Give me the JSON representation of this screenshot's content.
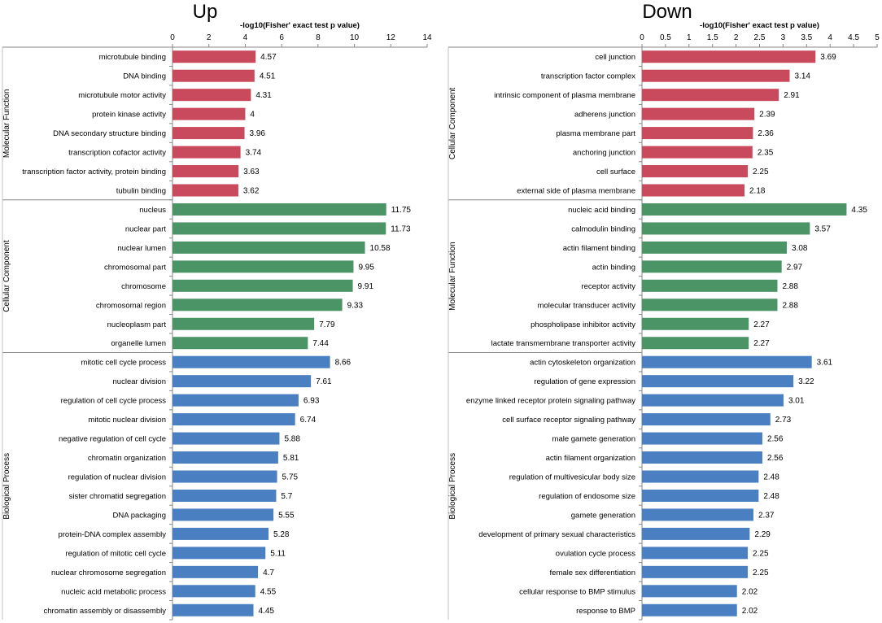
{
  "chart_data": [
    {
      "type": "bar",
      "orientation": "horizontal",
      "title": "Up",
      "xlabel": "-log10(Fisher' exact test p value)",
      "xlim": [
        0,
        14
      ],
      "xticks": [
        "0",
        "2",
        "4",
        "6",
        "8",
        "10",
        "12",
        "14"
      ],
      "groups": [
        {
          "name": "Molecular Function",
          "color": "#c94a5c",
          "categories": [
            "microtubule binding",
            "DNA binding",
            "microtubule motor activity",
            "protein kinase activity",
            "DNA secondary structure binding",
            "transcription cofactor activity",
            "transcription factor activity, protein binding",
            "tubulin binding"
          ],
          "values": [
            4.57,
            4.51,
            4.31,
            4,
            3.96,
            3.74,
            3.63,
            3.62
          ],
          "labels": [
            "4.57",
            "4.51",
            "4.31",
            "4",
            "3.96",
            "3.74",
            "3.63",
            "3.62"
          ]
        },
        {
          "name": "Cellular Component",
          "color": "#4a9466",
          "categories": [
            "nucleus",
            "nuclear part",
            "nuclear lumen",
            "chromosomal part",
            "chromosome",
            "chromosomal region",
            "nucleoplasm part",
            "organelle lumen"
          ],
          "values": [
            11.75,
            11.73,
            10.58,
            9.95,
            9.91,
            9.33,
            7.79,
            7.44
          ],
          "labels": [
            "11.75",
            "11.73",
            "10.58",
            "9.95",
            "9.91",
            "9.33",
            "7.79",
            "7.44"
          ]
        },
        {
          "name": "Biological Process",
          "color": "#4a80c2",
          "categories": [
            "mitotic cell cycle process",
            "nuclear division",
            "regulation of cell cycle process",
            "mitotic nuclear division",
            "negative regulation of cell cycle",
            "chromatin organization",
            "regulation of nuclear division",
            "sister chromatid segregation",
            "DNA packaging",
            "protein-DNA complex assembly",
            "regulation of mitotic cell cycle",
            "nuclear chromosome segregation",
            "nucleic acid metabolic process",
            "chromatin assembly or disassembly"
          ],
          "values": [
            8.66,
            7.61,
            6.93,
            6.74,
            5.88,
            5.81,
            5.75,
            5.7,
            5.55,
            5.28,
            5.11,
            4.7,
            4.55,
            4.45
          ],
          "labels": [
            "8.66",
            "7.61",
            "6.93",
            "6.74",
            "5.88",
            "5.81",
            "5.75",
            "5.7",
            "5.55",
            "5.28",
            "5.11",
            "4.7",
            "4.55",
            "4.45"
          ]
        }
      ]
    },
    {
      "type": "bar",
      "orientation": "horizontal",
      "title": "Down",
      "xlabel": "-log10(Fisher' exact test p value)",
      "xlim": [
        0,
        5
      ],
      "xticks": [
        "0",
        "0.5",
        "1",
        "1.5",
        "2",
        "2.5",
        "3",
        "3.5",
        "4",
        "4.5",
        "5"
      ],
      "groups": [
        {
          "name": "Cellular Component",
          "color": "#c94a5c",
          "categories": [
            "cell junction",
            "transcription factor complex",
            "intrinsic component of plasma membrane",
            "adherens junction",
            "plasma membrane part",
            "anchoring junction",
            "cell surface",
            "external side of plasma membrane"
          ],
          "values": [
            3.69,
            3.14,
            2.91,
            2.39,
            2.36,
            2.35,
            2.25,
            2.18
          ],
          "labels": [
            "3.69",
            "3.14",
            "2.91",
            "2.39",
            "2.36",
            "2.35",
            "2.25",
            "2.18"
          ]
        },
        {
          "name": "Molecular Function",
          "color": "#4a9466",
          "categories": [
            "nucleic acid binding",
            "calmodulin binding",
            "actin filament binding",
            "actin binding",
            "receptor activity",
            "molecular transducer activity",
            "phospholipase inhibitor activity",
            "lactate transmembrane transporter activity"
          ],
          "values": [
            4.35,
            3.57,
            3.08,
            2.97,
            2.88,
            2.88,
            2.27,
            2.27
          ],
          "labels": [
            "4.35",
            "3.57",
            "3.08",
            "2.97",
            "2.88",
            "2.88",
            "2.27",
            "2.27"
          ]
        },
        {
          "name": "Biological Process",
          "color": "#4a80c2",
          "categories": [
            "actin cytoskeleton organization",
            "regulation of gene expression",
            "enzyme linked receptor protein signaling pathway",
            "cell surface receptor signaling pathway",
            "male gamete generation",
            "actin filament organization",
            "regulation of multivesicular body size",
            "regulation of endosome size",
            "gamete generation",
            "development of primary sexual characteristics",
            "ovulation cycle process",
            "female sex differentiation",
            "cellular response to BMP stimulus",
            "response to BMP"
          ],
          "values": [
            3.61,
            3.22,
            3.01,
            2.73,
            2.56,
            2.56,
            2.48,
            2.48,
            2.37,
            2.29,
            2.25,
            2.25,
            2.02,
            2.02
          ],
          "labels": [
            "3.61",
            "3.22",
            "3.01",
            "2.73",
            "2.56",
            "2.56",
            "2.48",
            "2.48",
            "2.37",
            "2.29",
            "2.25",
            "2.25",
            "2.02",
            "2.02"
          ]
        }
      ]
    }
  ]
}
